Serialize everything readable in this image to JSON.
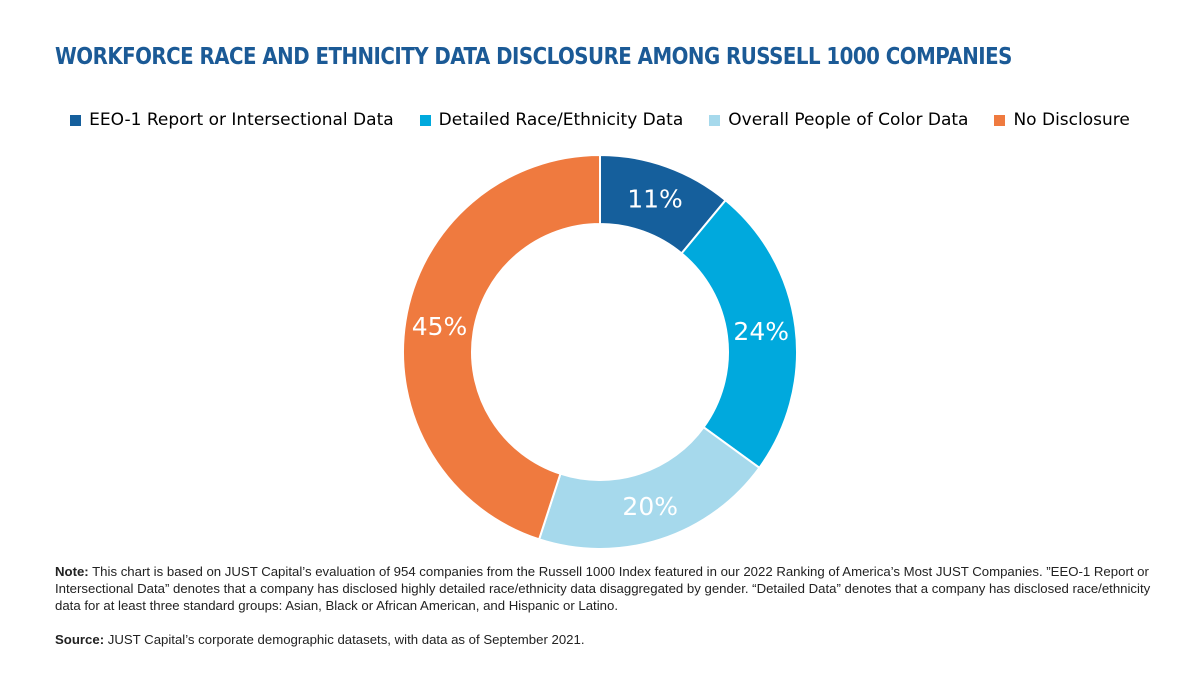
{
  "title": "WORKFORCE RACE AND ETHNICITY DATA DISCLOSURE AMONG RUSSELL 1000 COMPANIES",
  "colors": {
    "title": "#1b5a96"
  },
  "legend": [
    {
      "label": "EEO-1 Report or Intersectional Data",
      "color": "#155f9c"
    },
    {
      "label": "Detailed Race/Ethnicity Data",
      "color": "#00a9dd"
    },
    {
      "label": "Overall People of Color Data",
      "color": "#a6d9ec"
    },
    {
      "label": "No Disclosure",
      "color": "#ef7a3f"
    }
  ],
  "chart_data": {
    "type": "pie",
    "donut": true,
    "title": "WORKFORCE RACE AND ETHNICITY DATA DISCLOSURE AMONG RUSSELL 1000 COMPANIES",
    "legend_position": "top",
    "categories": [
      "EEO-1 Report or Intersectional Data",
      "Detailed Race/Ethnicity Data",
      "Overall People of Color Data",
      "No Disclosure"
    ],
    "values": [
      11,
      24,
      20,
      45
    ],
    "labels": [
      "11%",
      "24%",
      "20%",
      "45%"
    ],
    "colors": [
      "#155f9c",
      "#00a9dd",
      "#a6d9ec",
      "#ef7a3f"
    ]
  },
  "note": {
    "label": "Note:",
    "text": " This chart is based on JUST Capital’s evaluation of 954 companies from the Russell 1000 Index featured in our 2022 Ranking of America’s Most JUST Companies. ”EEO-1 Report or Intersectional Data” denotes that a company has disclosed highly detailed race/ethnicity data disaggregated by gender. “Detailed Data” denotes that a company has disclosed race/ethnicity data for at least three standard groups: Asian, Black or African American, and Hispanic or Latino."
  },
  "source": {
    "label": "Source:",
    "text": " JUST Capital’s corporate demographic datasets, with data as of September 2021."
  }
}
